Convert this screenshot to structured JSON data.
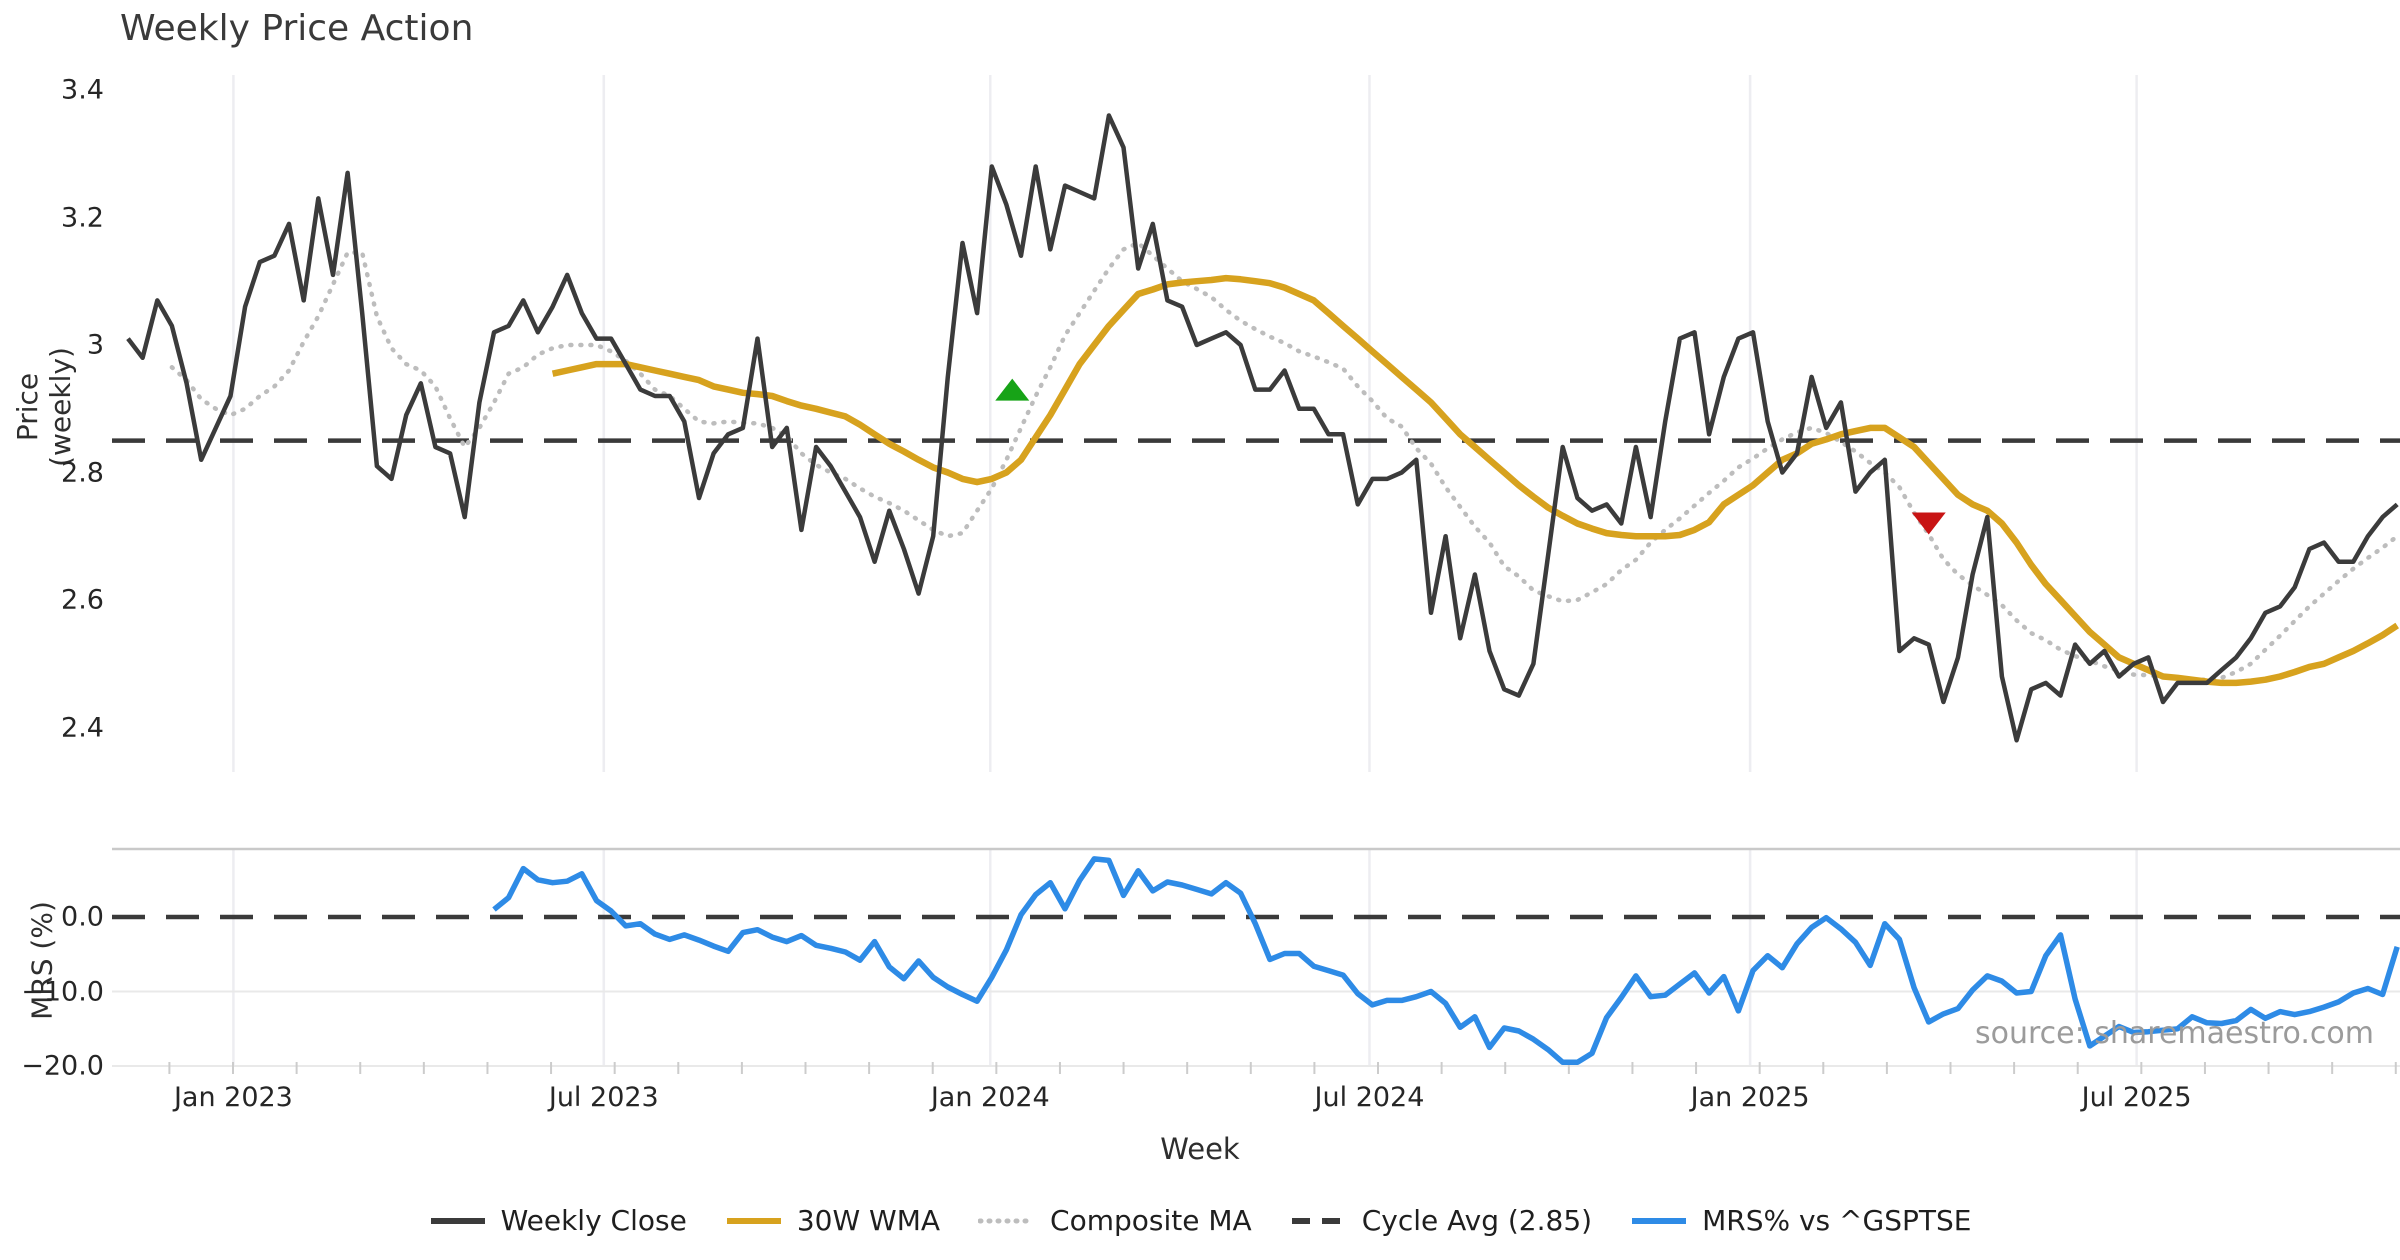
{
  "title": "Weekly Price Action",
  "source_note": "source: sharemaestro.com",
  "xlabel": "Week",
  "price_panel": {
    "ylabel": "Price (weekly)",
    "yticks": [
      {
        "value": 3.4,
        "label": "3.4"
      },
      {
        "value": 3.2,
        "label": "3.2"
      },
      {
        "value": 3.0,
        "label": "3"
      },
      {
        "value": 2.8,
        "label": "2.8"
      },
      {
        "value": 2.6,
        "label": "2.6"
      },
      {
        "value": 2.4,
        "label": "2.4"
      }
    ]
  },
  "mrs_panel": {
    "ylabel": "MRS (%)",
    "yticks": [
      {
        "value": 0,
        "label": "0.0"
      },
      {
        "value": -10,
        "label": "−10.0"
      },
      {
        "value": -20,
        "label": "−20.0"
      }
    ]
  },
  "xticks": [
    {
      "week": 7.2,
      "label": "Jan 2023"
    },
    {
      "week": 32.5,
      "label": "Jul 2023"
    },
    {
      "week": 58.9,
      "label": "Jan 2024"
    },
    {
      "week": 84.8,
      "label": "Jul 2024"
    },
    {
      "week": 110.8,
      "label": "Jan 2025"
    },
    {
      "week": 137.2,
      "label": "Jul 2025"
    }
  ],
  "legend": [
    {
      "label": "Weekly Close",
      "style": "solid",
      "color": "#3b3b3b"
    },
    {
      "label": "30W WMA",
      "style": "solid",
      "color": "#d7a21e"
    },
    {
      "label": "Composite MA",
      "style": "dotted",
      "color": "#bdbdbd"
    },
    {
      "label": "Cycle Avg (2.85)",
      "style": "dashed",
      "color": "#3a3a3a"
    },
    {
      "label": "MRS% vs ^GSPTSE",
      "style": "solid",
      "color": "#2e8be6"
    }
  ],
  "colors": {
    "close": "#3b3b3b",
    "wma": "#d7a21e",
    "composite": "#bdbdbd",
    "cycle": "#3a3a3a",
    "mrs": "#2e8be6",
    "grid": "#ededf1",
    "mrs_grid": "#e9e9e9",
    "mrs_spine": "#c9c9c9",
    "minor_tick": "#cccccc",
    "marker_up": "#17a317",
    "marker_down": "#c81414"
  },
  "chart_data": {
    "type": "line",
    "x_unit": "week_index",
    "weeks_total": 156,
    "cycle_avg": 2.85,
    "price_ylim": [
      2.35,
      3.42
    ],
    "mrs_ylim": [
      -21,
      9
    ],
    "markers": [
      {
        "name": "buy-signal",
        "shape": "triangle-up",
        "week": 60.4,
        "value": 2.93
      },
      {
        "name": "sell-signal",
        "shape": "triangle-down",
        "week": 123.0,
        "value": 2.72
      }
    ],
    "series": [
      {
        "name": "Weekly Close",
        "panel": "price",
        "start_week": 0,
        "values": [
          3.01,
          2.98,
          3.07,
          3.03,
          2.94,
          2.82,
          2.87,
          2.92,
          3.06,
          3.13,
          3.14,
          3.19,
          3.07,
          3.23,
          3.11,
          3.27,
          3.05,
          2.81,
          2.79,
          2.89,
          2.94,
          2.84,
          2.83,
          2.73,
          2.91,
          3.02,
          3.03,
          3.07,
          3.02,
          3.06,
          3.11,
          3.05,
          3.01,
          3.01,
          2.97,
          2.93,
          2.92,
          2.92,
          2.88,
          2.76,
          2.83,
          2.86,
          2.87,
          3.01,
          2.84,
          2.87,
          2.71,
          2.84,
          2.81,
          2.77,
          2.73,
          2.66,
          2.74,
          2.68,
          2.61,
          2.7,
          2.95,
          3.16,
          3.05,
          3.28,
          3.22,
          3.14,
          3.28,
          3.15,
          3.25,
          3.24,
          3.23,
          3.36,
          3.31,
          3.12,
          3.19,
          3.07,
          3.06,
          3.0,
          3.01,
          3.02,
          3.0,
          2.93,
          2.93,
          2.96,
          2.9,
          2.9,
          2.86,
          2.86,
          2.75,
          2.79,
          2.79,
          2.8,
          2.82,
          2.58,
          2.7,
          2.54,
          2.64,
          2.52,
          2.46,
          2.45,
          2.5,
          2.67,
          2.84,
          2.76,
          2.74,
          2.75,
          2.72,
          2.84,
          2.73,
          2.88,
          3.01,
          3.02,
          2.86,
          2.95,
          3.01,
          3.02,
          2.88,
          2.8,
          2.83,
          2.95,
          2.87,
          2.91,
          2.77,
          2.8,
          2.82,
          2.52,
          2.54,
          2.53,
          2.44,
          2.51,
          2.64,
          2.73,
          2.48,
          2.38,
          2.46,
          2.47,
          2.45,
          2.53,
          2.5,
          2.52,
          2.48,
          2.5,
          2.51,
          2.44,
          2.47,
          2.47,
          2.47,
          2.49,
          2.51,
          2.54,
          2.58,
          2.59,
          2.62,
          2.68,
          2.69,
          2.66,
          2.66,
          2.7,
          2.73,
          2.75
        ]
      },
      {
        "name": "30W WMA",
        "panel": "price",
        "start_week": 29,
        "values": [
          2.955,
          2.96,
          2.965,
          2.97,
          2.97,
          2.97,
          2.965,
          2.96,
          2.955,
          2.95,
          2.945,
          2.935,
          2.93,
          2.925,
          2.923,
          2.92,
          2.912,
          2.905,
          2.9,
          2.894,
          2.888,
          2.875,
          2.86,
          2.845,
          2.833,
          2.82,
          2.808,
          2.8,
          2.79,
          2.785,
          2.79,
          2.8,
          2.82,
          2.855,
          2.89,
          2.93,
          2.97,
          3.0,
          3.03,
          3.055,
          3.08,
          3.087,
          3.095,
          3.098,
          3.1,
          3.102,
          3.105,
          3.103,
          3.1,
          3.097,
          3.09,
          3.08,
          3.07,
          3.05,
          3.03,
          3.01,
          2.99,
          2.97,
          2.95,
          2.93,
          2.91,
          2.885,
          2.86,
          2.84,
          2.82,
          2.8,
          2.78,
          2.762,
          2.745,
          2.732,
          2.72,
          2.712,
          2.705,
          2.702,
          2.7,
          2.7,
          2.7,
          2.702,
          2.71,
          2.722,
          2.75,
          2.765,
          2.78,
          2.8,
          2.82,
          2.83,
          2.845,
          2.852,
          2.86,
          2.865,
          2.87,
          2.87,
          2.855,
          2.84,
          2.815,
          2.79,
          2.765,
          2.75,
          2.74,
          2.72,
          2.69,
          2.655,
          2.625,
          2.6,
          2.575,
          2.55,
          2.53,
          2.51,
          2.5,
          2.49,
          2.48,
          2.478,
          2.475,
          2.472,
          2.47,
          2.47,
          2.472,
          2.475,
          2.48,
          2.487,
          2.495,
          2.5,
          2.51,
          2.52,
          2.532,
          2.545,
          2.56
        ]
      },
      {
        "name": "Composite MA",
        "panel": "price",
        "start_week": 3,
        "values": [
          2.965,
          2.945,
          2.915,
          2.9,
          2.89,
          2.9,
          2.92,
          2.935,
          2.96,
          3.005,
          3.045,
          3.095,
          3.145,
          3.145,
          3.045,
          2.995,
          2.97,
          2.96,
          2.935,
          2.885,
          2.84,
          2.87,
          2.91,
          2.955,
          2.965,
          2.985,
          2.995,
          3.0,
          3.0,
          3.0,
          2.99,
          2.975,
          2.955,
          2.93,
          2.92,
          2.9,
          2.88,
          2.877,
          2.88,
          2.878,
          2.877,
          2.87,
          2.857,
          2.83,
          2.812,
          2.8,
          2.79,
          2.775,
          2.762,
          2.752,
          2.74,
          2.725,
          2.71,
          2.7,
          2.705,
          2.74,
          2.775,
          2.82,
          2.87,
          2.92,
          2.965,
          3.015,
          3.05,
          3.085,
          3.12,
          3.15,
          3.16,
          3.14,
          3.12,
          3.1,
          3.088,
          3.075,
          3.055,
          3.038,
          3.025,
          3.013,
          3.003,
          2.99,
          2.982,
          2.973,
          2.963,
          2.935,
          2.912,
          2.885,
          2.872,
          2.838,
          2.814,
          2.777,
          2.746,
          2.715,
          2.69,
          2.653,
          2.637,
          2.615,
          2.606,
          2.598,
          2.6,
          2.612,
          2.625,
          2.647,
          2.663,
          2.69,
          2.71,
          2.728,
          2.748,
          2.768,
          2.787,
          2.808,
          2.822,
          2.838,
          2.852,
          2.863,
          2.87,
          2.862,
          2.848,
          2.833,
          2.815,
          2.8,
          2.777,
          2.737,
          2.703,
          2.664,
          2.64,
          2.623,
          2.608,
          2.592,
          2.568,
          2.548,
          2.537,
          2.522,
          2.512,
          2.505,
          2.496,
          2.489,
          2.483,
          2.482,
          2.48,
          2.477,
          2.475,
          2.475,
          2.478,
          2.487,
          2.5,
          2.522,
          2.544,
          2.567,
          2.59,
          2.61,
          2.63,
          2.649,
          2.666,
          2.682,
          2.7
        ]
      },
      {
        "name": "MRS% vs ^GSPTSE",
        "panel": "mrs",
        "start_week": 25,
        "values": [
          1.0,
          2.6,
          6.5,
          5.0,
          4.6,
          4.8,
          5.8,
          2.2,
          0.8,
          -1.2,
          -0.9,
          -2.3,
          -3.0,
          -2.4,
          -3.1,
          -3.9,
          -4.6,
          -2.1,
          -1.7,
          -2.7,
          -3.3,
          -2.5,
          -3.8,
          -4.2,
          -4.7,
          -5.8,
          -3.3,
          -6.7,
          -8.3,
          -5.9,
          -8.1,
          -9.4,
          -10.4,
          -11.3,
          -8.1,
          -4.4,
          0.3,
          3.0,
          4.6,
          1.1,
          4.9,
          7.8,
          7.6,
          2.9,
          6.2,
          3.5,
          4.7,
          4.3,
          3.7,
          3.1,
          4.6,
          3.2,
          -0.9,
          -5.7,
          -4.9,
          -4.9,
          -6.6,
          -7.2,
          -7.8,
          -10.3,
          -11.8,
          -11.2,
          -11.2,
          -10.7,
          -10.0,
          -11.6,
          -14.8,
          -13.4,
          -17.5,
          -14.9,
          -15.3,
          -16.4,
          -17.8,
          -19.5,
          -19.5,
          -18.3,
          -13.5,
          -10.8,
          -7.9,
          -10.7,
          -10.5,
          -9.0,
          -7.5,
          -10.2,
          -8.0,
          -12.6,
          -7.2,
          -5.2,
          -6.8,
          -3.6,
          -1.4,
          -0.1,
          -1.6,
          -3.4,
          -6.5,
          -0.9,
          -3.0,
          -9.5,
          -14.1,
          -13.0,
          -12.3,
          -9.8,
          -7.9,
          -8.6,
          -10.2,
          -10.0,
          -5.2,
          -2.4,
          -11.0,
          -17.3,
          -16.0,
          -14.7,
          -15.5,
          -15.4,
          -15.2,
          -15.0,
          -13.4,
          -14.2,
          -14.3,
          -13.9,
          -12.4,
          -13.6,
          -12.7,
          -13.1,
          -12.7,
          -12.1,
          -11.4,
          -10.2,
          -9.6,
          -10.4,
          -4.0
        ]
      }
    ]
  }
}
